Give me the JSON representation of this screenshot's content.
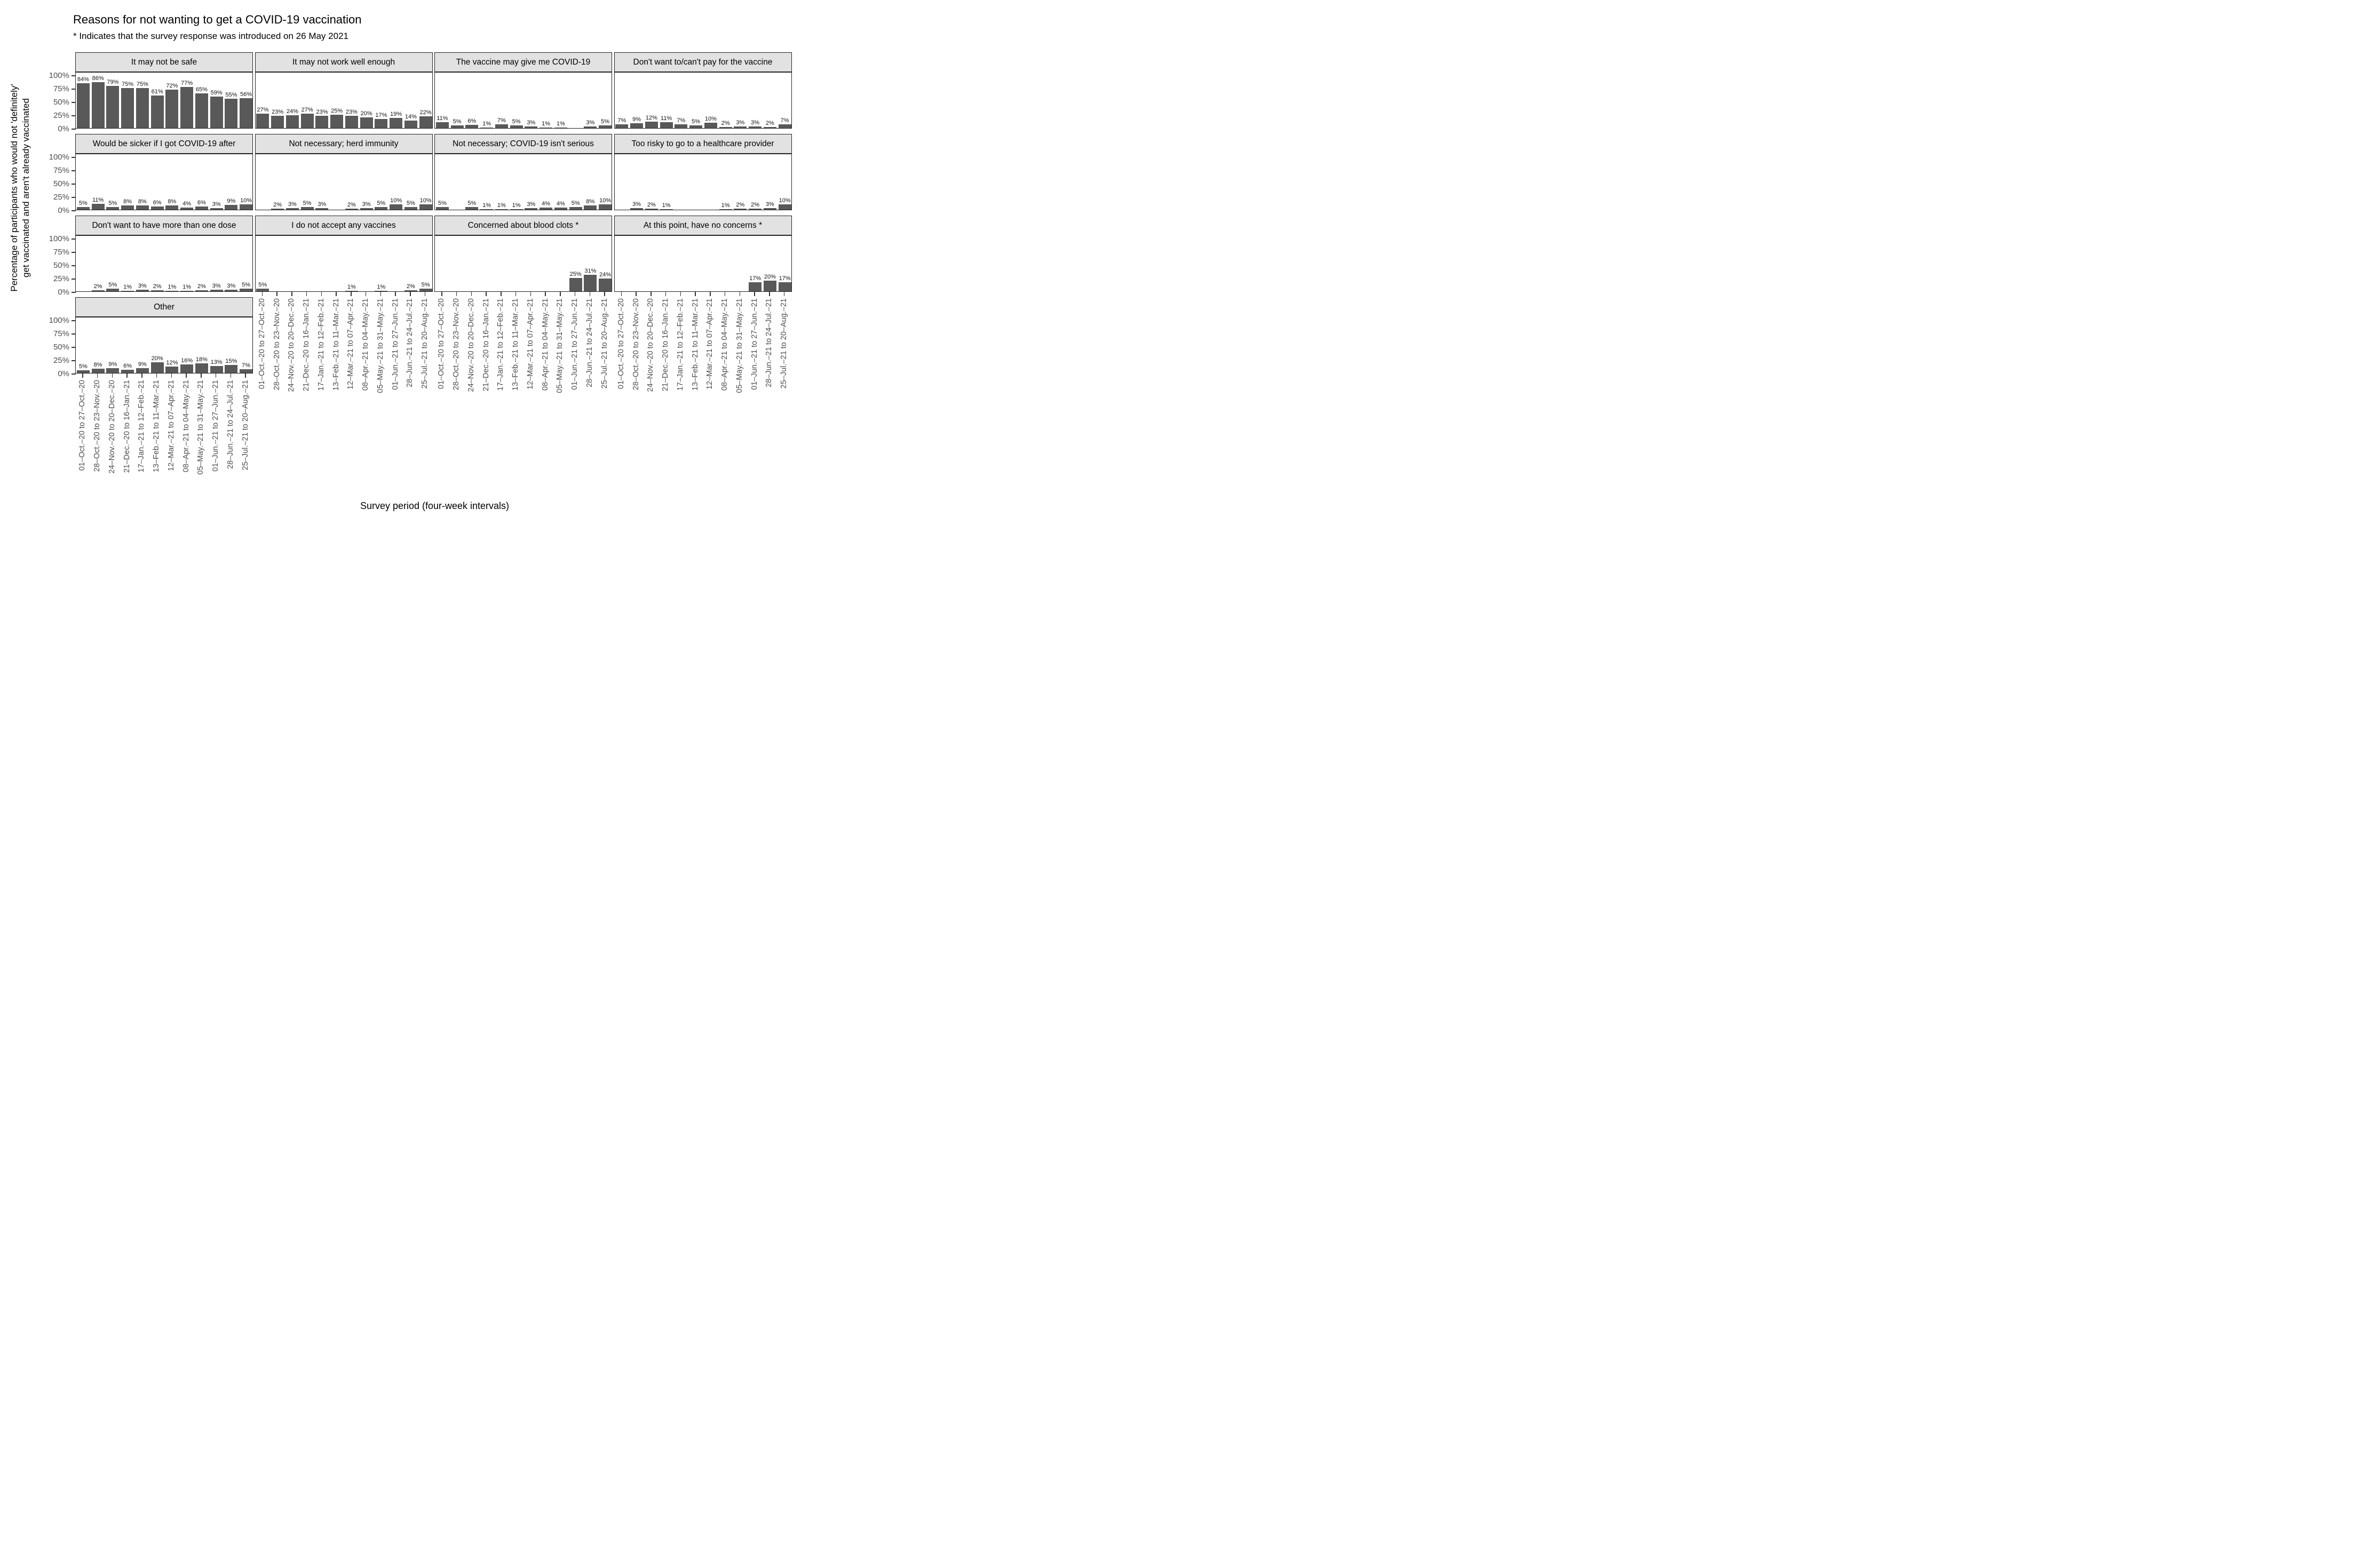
{
  "title": "Reasons for not wanting to get a COVID-19 vaccination",
  "subtitle": "* Indicates that the survey response was introduced on 26 May 2021",
  "x_axis_title": "Survey period (four-week intervals)",
  "y_axis_title_line1": "Percentage of participants who would not 'definitely'",
  "y_axis_title_line2": "get vaccinated and aren't already vaccinated",
  "colors": {
    "bar": "#595959",
    "strip_background": "#e2e2e2",
    "panel_border": "#222222",
    "axis_text": "#4d4d4d"
  },
  "chart_data": {
    "type": "bar",
    "ylim": [
      0,
      100
    ],
    "grid": "off",
    "y_ticks": [
      "0%",
      "25%",
      "50%",
      "75%",
      "100%"
    ],
    "categories": [
      "01–Oct.–20 to 27–Oct.–20",
      "28–Oct.–20 to 23–Nov.–20",
      "24–Nov.–20 to 20–Dec.–20",
      "21–Dec.–20 to 16–Jan.–21",
      "17–Jan.–21 to 12–Feb.–21",
      "13–Feb.–21 to 11–Mar.–21",
      "12–Mar.–21 to 07–Apr.–21",
      "08–Apr.–21 to 04–May.–21",
      "05–May.–21 to 31–May.–21",
      "01–Jun.–21 to 27–Jun.–21",
      "28–Jun.–21 to 24–Jul.–21",
      "25–Jul.–21 to 20–Aug.–21"
    ],
    "series": [
      {
        "name": "It may not be safe",
        "values": [
          84,
          86,
          79,
          75,
          75,
          61,
          72,
          77,
          65,
          59,
          55,
          56
        ]
      },
      {
        "name": "It may not work well enough",
        "values": [
          27,
          23,
          24,
          27,
          23,
          25,
          23,
          20,
          17,
          19,
          14,
          22
        ]
      },
      {
        "name": "The vaccine may give me COVID-19",
        "values": [
          11,
          5,
          6,
          1,
          7,
          5,
          3,
          1,
          1,
          null,
          3,
          5
        ]
      },
      {
        "name": "Don't want to/can't pay for the vaccine",
        "values": [
          7,
          9,
          12,
          11,
          7,
          5,
          10,
          2,
          3,
          3,
          2,
          7
        ]
      },
      {
        "name": "Would be sicker if I got COVID-19 after",
        "values": [
          5,
          11,
          5,
          8,
          8,
          6,
          8,
          4,
          6,
          3,
          9,
          10
        ]
      },
      {
        "name": "Not necessary; herd immunity",
        "values": [
          null,
          2,
          3,
          5,
          3,
          null,
          2,
          3,
          5,
          10,
          5,
          10
        ]
      },
      {
        "name": "Not necessary; COVID-19 isn't serious",
        "values": [
          5,
          null,
          5,
          1,
          1,
          1,
          3,
          4,
          4,
          5,
          8,
          10
        ]
      },
      {
        "name": "Too risky to go to a healthcare provider",
        "values": [
          null,
          3,
          2,
          1,
          null,
          null,
          null,
          1,
          2,
          2,
          3,
          10
        ]
      },
      {
        "name": "Don't want to have more than one dose",
        "values": [
          null,
          2,
          5,
          1,
          3,
          2,
          1,
          1,
          2,
          3,
          3,
          5
        ]
      },
      {
        "name": "I do not accept any vaccines",
        "values": [
          5,
          null,
          null,
          null,
          null,
          null,
          1,
          null,
          1,
          null,
          2,
          5
        ]
      },
      {
        "name": "Concerned about blood clots *",
        "values": [
          null,
          null,
          null,
          null,
          null,
          null,
          null,
          null,
          null,
          25,
          31,
          24
        ]
      },
      {
        "name": "At this point, have no concerns *",
        "values": [
          null,
          null,
          null,
          null,
          null,
          null,
          null,
          null,
          null,
          17,
          20,
          17
        ]
      },
      {
        "name": "Other",
        "values": [
          5,
          8,
          9,
          6,
          9,
          20,
          12,
          16,
          18,
          13,
          15,
          7
        ]
      }
    ],
    "value_label_format": "{value}%"
  }
}
